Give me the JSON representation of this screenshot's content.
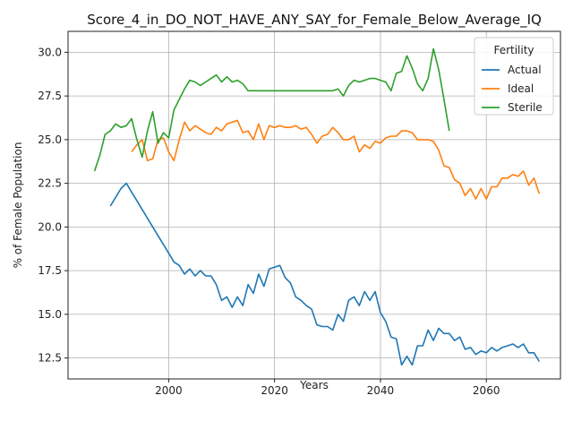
{
  "chart_data": {
    "type": "line",
    "title": "Score_4_in_DO_NOT_HAVE_ANY_SAY_for_Female_Below_Average_IQ",
    "xlabel": "Years",
    "ylabel": "% of Female Population",
    "xlim": [
      1981,
      2074
    ],
    "ylim": [
      11.3,
      31.2
    ],
    "xticks": [
      2000,
      2020,
      2040,
      2060
    ],
    "yticks": [
      12.5,
      15.0,
      17.5,
      20.0,
      22.5,
      25.0,
      27.5,
      30.0
    ],
    "grid": true,
    "legend": {
      "title": "Fertility",
      "placement": "upper right"
    },
    "series": [
      {
        "name": "Actual",
        "color": "#1f77b4",
        "x": [
          1989,
          1990,
          1991,
          1992,
          1993,
          1994,
          1995,
          1996,
          1997,
          1998,
          1999,
          2000,
          2001,
          2002,
          2003,
          2004,
          2005,
          2006,
          2007,
          2008,
          2009,
          2010,
          2011,
          2012,
          2013,
          2014,
          2015,
          2016,
          2017,
          2018,
          2019,
          2020,
          2021,
          2022,
          2023,
          2024,
          2025,
          2026,
          2027,
          2028,
          2029,
          2030,
          2031,
          2032,
          2033,
          2034,
          2035,
          2036,
          2037,
          2038,
          2039,
          2040,
          2041,
          2042,
          2043,
          2044,
          2045,
          2046,
          2047,
          2048,
          2049,
          2050,
          2051,
          2052,
          2053,
          2054,
          2055,
          2056,
          2057,
          2058,
          2059,
          2060,
          2061,
          2062,
          2063,
          2064,
          2065,
          2066,
          2067,
          2068,
          2069,
          2070
        ],
        "values": [
          21.2,
          21.7,
          22.2,
          22.5,
          22.0,
          21.5,
          21.0,
          20.5,
          20.0,
          19.5,
          19.0,
          18.5,
          18.0,
          17.8,
          17.3,
          17.6,
          17.2,
          17.5,
          17.2,
          17.2,
          16.7,
          15.8,
          16.0,
          15.4,
          16.0,
          15.5,
          16.7,
          16.2,
          17.3,
          16.6,
          17.6,
          17.7,
          17.8,
          17.1,
          16.8,
          16.0,
          15.8,
          15.5,
          15.3,
          14.4,
          14.3,
          14.3,
          14.1,
          15.0,
          14.6,
          15.8,
          16.0,
          15.5,
          16.3,
          15.8,
          16.3,
          15.1,
          14.6,
          13.7,
          13.6,
          12.1,
          12.6,
          12.1,
          13.2,
          13.2,
          14.1,
          13.5,
          14.2,
          13.9,
          13.9,
          13.5,
          13.7,
          13.0,
          13.1,
          12.7,
          12.9,
          12.8,
          13.1,
          12.9,
          13.1,
          13.2,
          13.3,
          13.1,
          13.3,
          12.8,
          12.8,
          12.3
        ]
      },
      {
        "name": "Ideal",
        "color": "#ff7f0e",
        "x": [
          1993,
          1994,
          1995,
          1996,
          1997,
          1998,
          1999,
          2000,
          2001,
          2002,
          2003,
          2004,
          2005,
          2006,
          2007,
          2008,
          2009,
          2010,
          2011,
          2012,
          2013,
          2014,
          2015,
          2016,
          2017,
          2018,
          2019,
          2020,
          2021,
          2022,
          2023,
          2024,
          2025,
          2026,
          2027,
          2028,
          2029,
          2030,
          2031,
          2032,
          2033,
          2034,
          2035,
          2036,
          2037,
          2038,
          2039,
          2040,
          2041,
          2042,
          2043,
          2044,
          2045,
          2046,
          2047,
          2048,
          2049,
          2050,
          2051,
          2052,
          2053,
          2054,
          2055,
          2056,
          2057,
          2058,
          2059,
          2060,
          2061,
          2062,
          2063,
          2064,
          2065,
          2066,
          2067,
          2068,
          2069,
          2070
        ],
        "values": [
          24.3,
          24.7,
          25.0,
          23.8,
          23.9,
          25.0,
          25.1,
          24.3,
          23.8,
          25.0,
          26.0,
          25.5,
          25.8,
          25.6,
          25.4,
          25.3,
          25.7,
          25.5,
          25.9,
          26.0,
          26.1,
          25.4,
          25.5,
          25.0,
          25.9,
          25.0,
          25.8,
          25.7,
          25.8,
          25.7,
          25.7,
          25.8,
          25.6,
          25.7,
          25.3,
          24.8,
          25.2,
          25.3,
          25.7,
          25.4,
          25.0,
          25.0,
          25.2,
          24.3,
          24.7,
          24.5,
          24.9,
          24.8,
          25.1,
          25.2,
          25.2,
          25.5,
          25.5,
          25.4,
          25.0,
          25.0,
          25.0,
          24.9,
          24.4,
          23.5,
          23.4,
          22.7,
          22.5,
          21.8,
          22.2,
          21.6,
          22.2,
          21.6,
          22.3,
          22.3,
          22.8,
          22.8,
          23.0,
          22.9,
          23.2,
          22.4,
          22.8,
          21.9
        ]
      },
      {
        "name": "Sterile",
        "color": "#2ca02c",
        "x": [
          1986,
          1987,
          1988,
          1989,
          1990,
          1991,
          1992,
          1993,
          1994,
          1995,
          1996,
          1997,
          1998,
          1999,
          2000,
          2001,
          2002,
          2003,
          2004,
          2005,
          2006,
          2007,
          2008,
          2009,
          2010,
          2011,
          2012,
          2013,
          2014,
          2015,
          2016,
          2017,
          2018,
          2019,
          2020,
          2021,
          2022,
          2023,
          2024,
          2025,
          2026,
          2027,
          2028,
          2029,
          2030,
          2031,
          2032,
          2033,
          2034,
          2035,
          2036,
          2037,
          2038,
          2039,
          2040,
          2041,
          2042,
          2043,
          2044,
          2045,
          2046,
          2047,
          2048,
          2049,
          2050,
          2051,
          2052,
          2053
        ],
        "values": [
          23.2,
          24.1,
          25.3,
          25.5,
          25.9,
          25.7,
          25.8,
          26.2,
          25.0,
          24.0,
          25.5,
          26.6,
          24.8,
          25.4,
          25.1,
          26.7,
          27.3,
          27.9,
          28.4,
          28.3,
          28.1,
          28.3,
          28.5,
          28.7,
          28.3,
          28.6,
          28.3,
          28.4,
          28.2,
          27.8,
          27.8,
          27.8,
          27.8,
          27.8,
          27.8,
          27.8,
          27.8,
          27.8,
          27.8,
          27.8,
          27.8,
          27.8,
          27.8,
          27.8,
          27.8,
          27.8,
          27.9,
          27.5,
          28.1,
          28.4,
          28.3,
          28.4,
          28.5,
          28.5,
          28.4,
          28.3,
          27.8,
          28.8,
          28.9,
          29.8,
          29.1,
          28.2,
          27.8,
          28.5,
          30.2,
          29.0,
          27.3,
          25.5
        ]
      }
    ]
  }
}
